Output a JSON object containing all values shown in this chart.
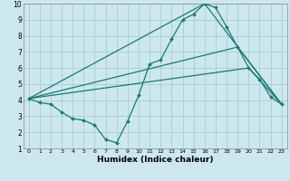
{
  "xlabel": "Humidex (Indice chaleur)",
  "bg_color": "#cce8ee",
  "grid_color": "#aaccd4",
  "line_color": "#1a7a6e",
  "xlim": [
    -0.5,
    23.5
  ],
  "ylim": [
    1,
    10
  ],
  "xticks": [
    0,
    1,
    2,
    3,
    4,
    5,
    6,
    7,
    8,
    9,
    10,
    11,
    12,
    13,
    14,
    15,
    16,
    17,
    18,
    19,
    20,
    21,
    22,
    23
  ],
  "yticks": [
    1,
    2,
    3,
    4,
    5,
    6,
    7,
    8,
    9,
    10
  ],
  "zigzag_x": [
    0,
    1,
    2,
    3,
    4,
    5,
    6,
    7,
    8,
    9,
    10,
    11,
    12,
    13,
    14,
    15,
    16,
    17,
    18,
    19,
    20,
    21,
    22,
    23
  ],
  "zigzag_y": [
    4.1,
    3.85,
    3.75,
    3.25,
    2.85,
    2.75,
    2.45,
    1.55,
    1.35,
    2.7,
    4.3,
    6.25,
    6.5,
    7.8,
    9.0,
    9.35,
    10.0,
    9.75,
    8.55,
    7.3,
    6.0,
    5.3,
    4.2,
    3.75
  ],
  "line1_x": [
    0,
    16,
    23
  ],
  "line1_y": [
    4.1,
    10.0,
    3.75
  ],
  "line2_x": [
    0,
    19,
    23
  ],
  "line2_y": [
    4.1,
    7.3,
    3.75
  ],
  "line3_x": [
    0,
    20,
    23
  ],
  "line3_y": [
    4.1,
    6.0,
    3.75
  ]
}
